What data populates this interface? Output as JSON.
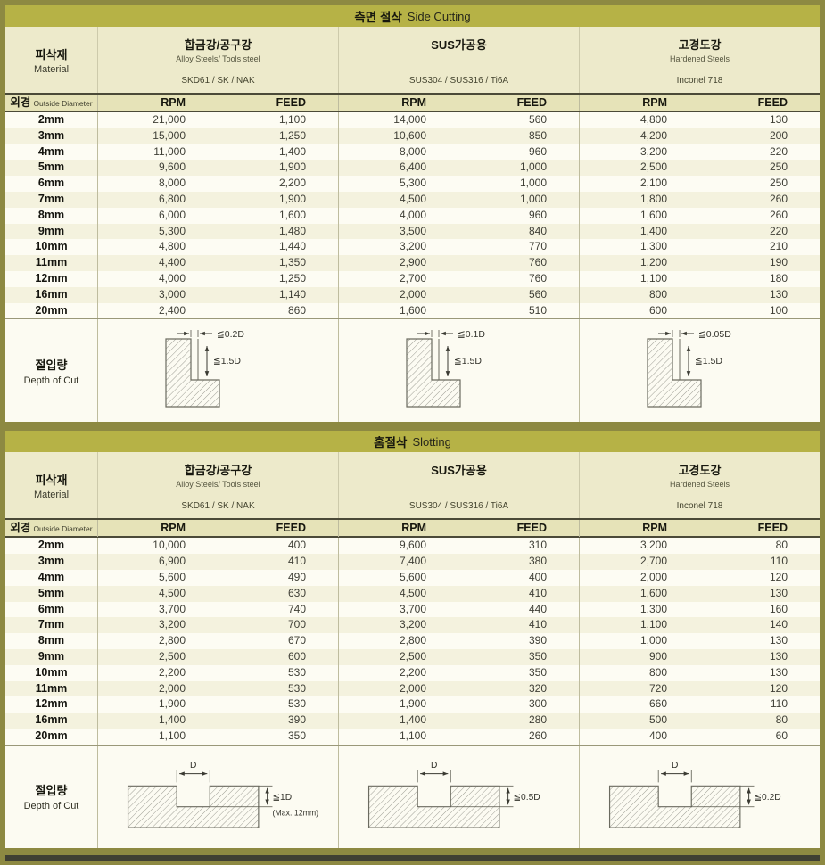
{
  "theme": {
    "frame": "#8d8942",
    "title_bg": "#b6b246",
    "header_bg": "#edeacb",
    "colhead_bg": "#e6e3b8",
    "row_alt": "#f4f2de"
  },
  "labels": {
    "material_ko": "피삭재",
    "material_en": "Material",
    "diameter_ko": "외경",
    "diameter_en": "Outside Diameter",
    "rpm": "RPM",
    "feed": "FEED",
    "depth_ko": "절입량",
    "depth_en": "Depth of Cut"
  },
  "tables": [
    {
      "title_ko": "측면 절삭",
      "title_en": "Side Cutting",
      "diagram": "side",
      "materials": [
        {
          "name_ko": "합금강/공구강",
          "name_en": "Alloy Steels/ Tools steel",
          "grades": "SKD61 / SK / NAK"
        },
        {
          "name_ko": "SUS가공용",
          "name_en": "",
          "grades": "SUS304 / SUS316 / Ti6A"
        },
        {
          "name_ko": "고경도강",
          "name_en": "Hardened Steels",
          "grades": "Inconel 718"
        }
      ],
      "rows": [
        {
          "d": "2mm",
          "v": [
            "21,000",
            "1,100",
            "14,000",
            "560",
            "4,800",
            "130"
          ]
        },
        {
          "d": "3mm",
          "v": [
            "15,000",
            "1,250",
            "10,600",
            "850",
            "4,200",
            "200"
          ]
        },
        {
          "d": "4mm",
          "v": [
            "11,000",
            "1,400",
            "8,000",
            "960",
            "3,200",
            "220"
          ]
        },
        {
          "d": "5mm",
          "v": [
            "9,600",
            "1,900",
            "6,400",
            "1,000",
            "2,500",
            "250"
          ]
        },
        {
          "d": "6mm",
          "v": [
            "8,000",
            "2,200",
            "5,300",
            "1,000",
            "2,100",
            "250"
          ]
        },
        {
          "d": "7mm",
          "v": [
            "6,800",
            "1,900",
            "4,500",
            "1,000",
            "1,800",
            "260"
          ]
        },
        {
          "d": "8mm",
          "v": [
            "6,000",
            "1,600",
            "4,000",
            "960",
            "1,600",
            "260"
          ]
        },
        {
          "d": "9mm",
          "v": [
            "5,300",
            "1,480",
            "3,500",
            "840",
            "1,400",
            "220"
          ]
        },
        {
          "d": "10mm",
          "v": [
            "4,800",
            "1,440",
            "3,200",
            "770",
            "1,300",
            "210"
          ]
        },
        {
          "d": "11mm",
          "v": [
            "4,400",
            "1,350",
            "2,900",
            "760",
            "1,200",
            "190"
          ]
        },
        {
          "d": "12mm",
          "v": [
            "4,000",
            "1,250",
            "2,700",
            "760",
            "1,100",
            "180"
          ]
        },
        {
          "d": "16mm",
          "v": [
            "3,000",
            "1,140",
            "2,000",
            "560",
            "800",
            "130"
          ]
        },
        {
          "d": "20mm",
          "v": [
            "2,400",
            "860",
            "1,600",
            "510",
            "600",
            "100"
          ]
        }
      ],
      "depth": [
        {
          "top": "≦0.2D",
          "side": "≦1.5D",
          "note": ""
        },
        {
          "top": "≦0.1D",
          "side": "≦1.5D",
          "note": ""
        },
        {
          "top": "≦0.05D",
          "side": "≦1.5D",
          "note": ""
        }
      ]
    },
    {
      "title_ko": "홈절삭",
      "title_en": "Slotting",
      "diagram": "slot",
      "materials": [
        {
          "name_ko": "합금강/공구강",
          "name_en": "Alloy Steels/ Tools steel",
          "grades": "SKD61 / SK / NAK"
        },
        {
          "name_ko": "SUS가공용",
          "name_en": "",
          "grades": "SUS304 / SUS316 / Ti6A"
        },
        {
          "name_ko": "고경도강",
          "name_en": "Hardened Steels",
          "grades": "Inconel 718"
        }
      ],
      "rows": [
        {
          "d": "2mm",
          "v": [
            "10,000",
            "400",
            "9,600",
            "310",
            "3,200",
            "80"
          ]
        },
        {
          "d": "3mm",
          "v": [
            "6,900",
            "410",
            "7,400",
            "380",
            "2,700",
            "110"
          ]
        },
        {
          "d": "4mm",
          "v": [
            "5,600",
            "490",
            "5,600",
            "400",
            "2,000",
            "120"
          ]
        },
        {
          "d": "5mm",
          "v": [
            "4,500",
            "630",
            "4,500",
            "410",
            "1,600",
            "130"
          ]
        },
        {
          "d": "6mm",
          "v": [
            "3,700",
            "740",
            "3,700",
            "440",
            "1,300",
            "160"
          ]
        },
        {
          "d": "7mm",
          "v": [
            "3,200",
            "700",
            "3,200",
            "410",
            "1,100",
            "140"
          ]
        },
        {
          "d": "8mm",
          "v": [
            "2,800",
            "670",
            "2,800",
            "390",
            "1,000",
            "130"
          ]
        },
        {
          "d": "9mm",
          "v": [
            "2,500",
            "600",
            "2,500",
            "350",
            "900",
            "130"
          ]
        },
        {
          "d": "10mm",
          "v": [
            "2,200",
            "530",
            "2,200",
            "350",
            "800",
            "130"
          ]
        },
        {
          "d": "11mm",
          "v": [
            "2,000",
            "530",
            "2,000",
            "320",
            "720",
            "120"
          ]
        },
        {
          "d": "12mm",
          "v": [
            "1,900",
            "530",
            "1,900",
            "300",
            "660",
            "110"
          ]
        },
        {
          "d": "16mm",
          "v": [
            "1,400",
            "390",
            "1,400",
            "280",
            "500",
            "80"
          ]
        },
        {
          "d": "20mm",
          "v": [
            "1,100",
            "350",
            "1,100",
            "260",
            "400",
            "60"
          ]
        }
      ],
      "depth": [
        {
          "top": "D",
          "side": "≦1D",
          "note": "(Max. 12mm)"
        },
        {
          "top": "D",
          "side": "≦0.5D",
          "note": ""
        },
        {
          "top": "D",
          "side": "≦0.2D",
          "note": ""
        }
      ]
    }
  ]
}
